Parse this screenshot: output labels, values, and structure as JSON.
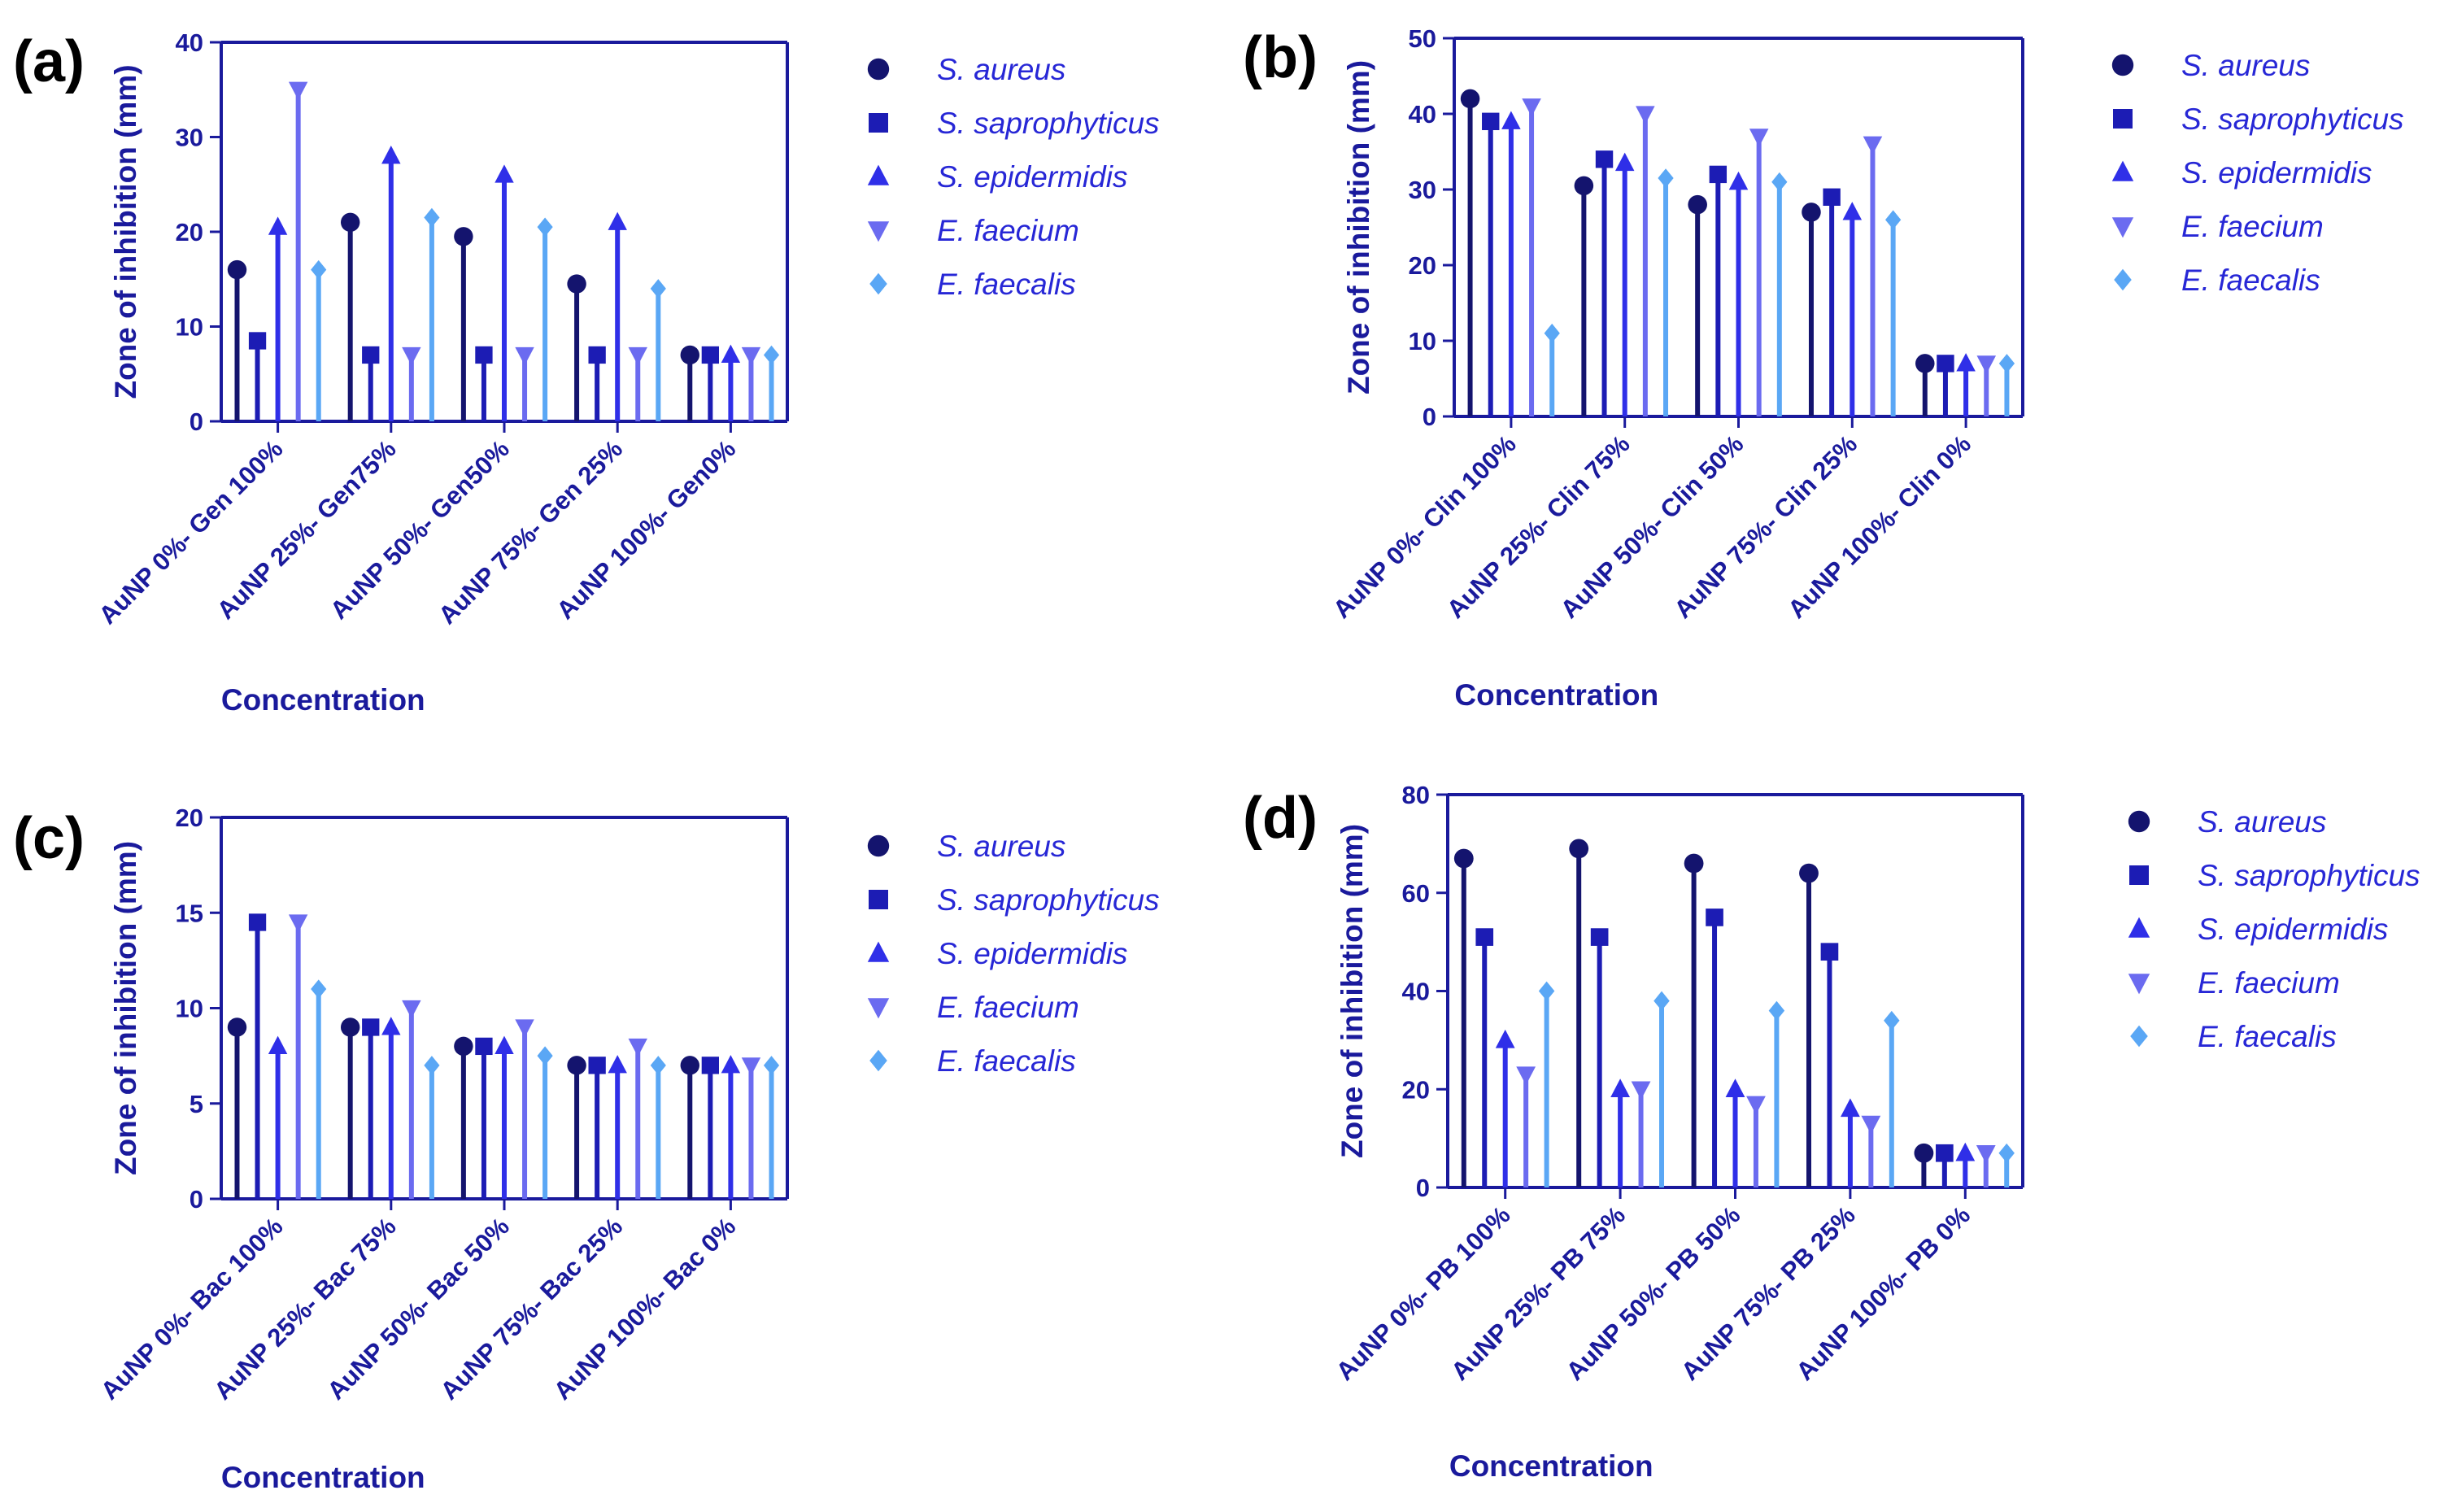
{
  "figure": {
    "colors": {
      "axis": "#1a1a9c",
      "text": "#1a1a9c",
      "legend_text": "#2727d6",
      "series": [
        "#14146e",
        "#1c1cb4",
        "#2f2fe8",
        "#6b6bf0",
        "#5aa7f5"
      ],
      "markers": [
        "circle",
        "square",
        "triangle-up",
        "triangle-down",
        "diamond"
      ]
    }
  },
  "chart_data": [
    {
      "panel": "(a)",
      "type": "bar",
      "xlabel": "Concentration",
      "ylabel": "Zone of inhibition (mm)",
      "ylim": [
        0,
        40
      ],
      "yticks": [
        0,
        10,
        20,
        30,
        40
      ],
      "categories": [
        "AuNP 0%- Gen 100%",
        "AuNP 25%- Gen75%",
        "AuNP 50%- Gen50%",
        "AuNP 75%- Gen 25%",
        "AuNP 100%- Gen0%"
      ],
      "series": [
        {
          "name": "S. aureus",
          "values": [
            16,
            21,
            19.5,
            14.5,
            7
          ]
        },
        {
          "name": "S. saprophyticus",
          "values": [
            8.5,
            7,
            7,
            7,
            7
          ]
        },
        {
          "name": "S. epidermidis",
          "values": [
            20.5,
            28,
            26,
            21,
            7
          ]
        },
        {
          "name": "E. faecium",
          "values": [
            35,
            7,
            7,
            7,
            7
          ]
        },
        {
          "name": "E. faecalis",
          "values": [
            16,
            21.5,
            20.5,
            14,
            7
          ]
        }
      ]
    },
    {
      "panel": "(b)",
      "type": "bar",
      "xlabel": "Concentration",
      "ylabel": "Zone of inhibition (mm)",
      "ylim": [
        0,
        50
      ],
      "yticks": [
        0,
        10,
        20,
        30,
        40,
        50
      ],
      "categories": [
        "AuNP 0%- Clin 100%",
        "AuNP 25%- Clin 75%",
        "AuNP 50%- Clin 50%",
        "AuNP 75%- Clin 25%",
        "AuNP 100%- Clin 0%"
      ],
      "series": [
        {
          "name": "S. aureus",
          "values": [
            42,
            30.5,
            28,
            27,
            7
          ]
        },
        {
          "name": "S. saprophyticus",
          "values": [
            39,
            34,
            32,
            29,
            7
          ]
        },
        {
          "name": "S. epidermidis",
          "values": [
            39,
            33.5,
            31,
            27,
            7
          ]
        },
        {
          "name": "E. faecium",
          "values": [
            41,
            40,
            37,
            36,
            7
          ]
        },
        {
          "name": "E. faecalis",
          "values": [
            11,
            31.5,
            31,
            26,
            7
          ]
        }
      ]
    },
    {
      "panel": "(c)",
      "type": "bar",
      "xlabel": "Concentration",
      "ylabel": "Zone of inhibition (mm)",
      "ylim": [
        0,
        20
      ],
      "yticks": [
        0,
        5,
        10,
        15,
        20
      ],
      "categories": [
        "AuNP 0%- Bac 100%",
        "AuNP 25%- Bac 75%",
        "AuNP 50%- Bac 50%",
        "AuNP 75%- Bac 25%",
        "AuNP 100%- Bac 0%"
      ],
      "series": [
        {
          "name": "S. aureus",
          "values": [
            9,
            9,
            8,
            7,
            7
          ]
        },
        {
          "name": "S. saprophyticus",
          "values": [
            14.5,
            9,
            8,
            7,
            7
          ]
        },
        {
          "name": "S. epidermidis",
          "values": [
            8,
            9,
            8,
            7,
            7
          ]
        },
        {
          "name": "E. faecium",
          "values": [
            14.5,
            10,
            9,
            8,
            7
          ]
        },
        {
          "name": "E. faecalis",
          "values": [
            11,
            7,
            7.5,
            7,
            7
          ]
        }
      ]
    },
    {
      "panel": "(d)",
      "type": "bar",
      "xlabel": "Concentration",
      "ylabel": "Zone of inhibition (mm)",
      "ylim": [
        0,
        80
      ],
      "yticks": [
        0,
        20,
        40,
        60,
        80
      ],
      "categories": [
        "AuNP 0%- PB 100%",
        "AuNP 25%- PB 75%",
        "AuNP 50%- PB 50%",
        "AuNP 75%- PB 25%",
        "AuNP 100%- PB 0%"
      ],
      "series": [
        {
          "name": "S. aureus",
          "values": [
            67,
            69,
            66,
            64,
            7
          ]
        },
        {
          "name": "S. saprophyticus",
          "values": [
            51,
            51,
            55,
            48,
            7
          ]
        },
        {
          "name": "S. epidermidis",
          "values": [
            30,
            20,
            20,
            16,
            7
          ]
        },
        {
          "name": "E. faecium",
          "values": [
            23,
            20,
            17,
            13,
            7
          ]
        },
        {
          "name": "E. faecalis",
          "values": [
            40,
            38,
            36,
            34,
            7
          ]
        }
      ]
    }
  ]
}
